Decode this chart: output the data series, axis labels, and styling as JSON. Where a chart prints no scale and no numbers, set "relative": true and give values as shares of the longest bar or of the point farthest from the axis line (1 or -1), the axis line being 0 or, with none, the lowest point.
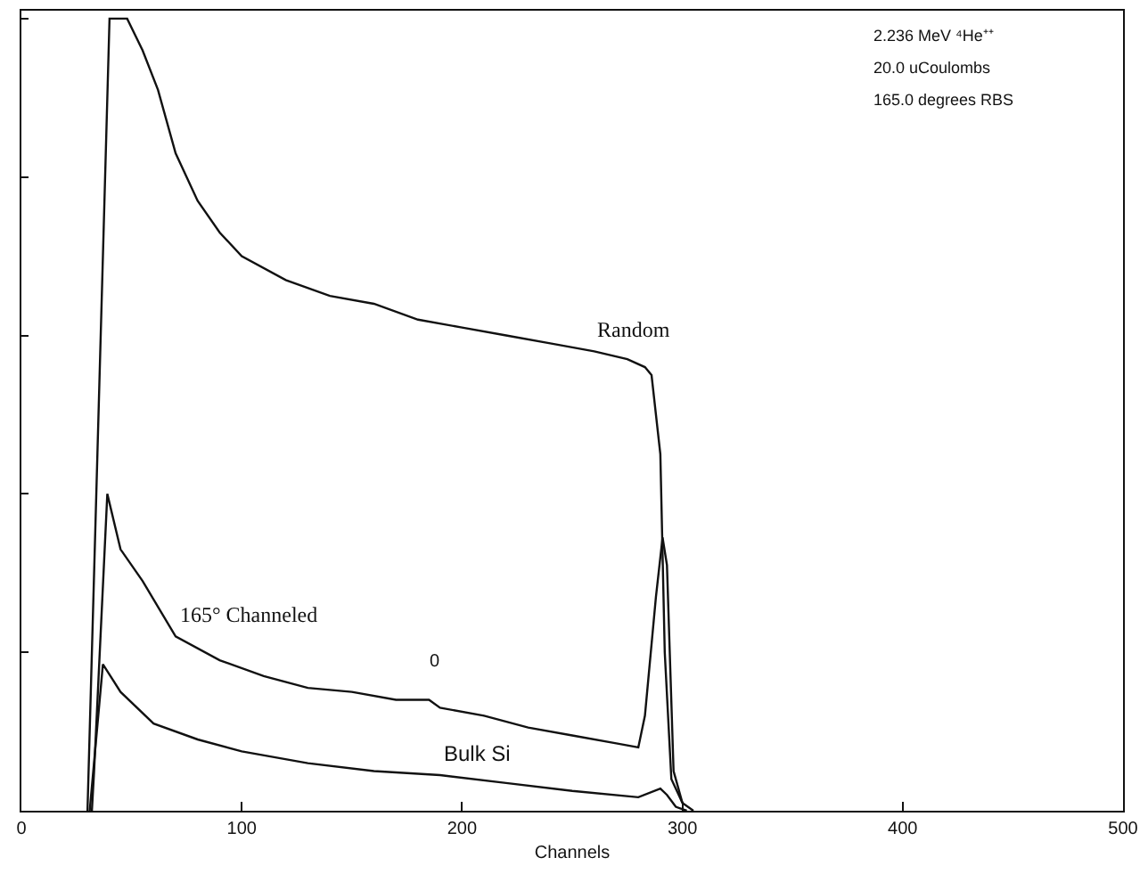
{
  "chart_data": {
    "type": "line",
    "xlabel": "Channels",
    "relative": true,
    "xlim": [
      0,
      500
    ],
    "xticks": [
      0,
      100,
      200,
      300,
      400,
      500
    ],
    "legend": false,
    "marker": "none",
    "line_style": "solid",
    "series": [
      {
        "name": "Random",
        "color": "#111111",
        "x": [
          30,
          40,
          48,
          55,
          62,
          70,
          80,
          90,
          100,
          120,
          140,
          160,
          180,
          200,
          220,
          240,
          260,
          275,
          283,
          286,
          290,
          292,
          295,
          300,
          305
        ],
        "values": [
          0,
          1.0,
          1.0,
          0.96,
          0.91,
          0.83,
          0.77,
          0.73,
          0.7,
          0.67,
          0.65,
          0.64,
          0.62,
          0.61,
          0.6,
          0.59,
          0.58,
          0.57,
          0.56,
          0.55,
          0.45,
          0.2,
          0.04,
          0.01,
          0
        ]
      },
      {
        "name": "165° Channeled",
        "color": "#111111",
        "x": [
          32,
          33,
          39,
          45,
          55,
          70,
          90,
          110,
          130,
          150,
          170,
          185,
          190,
          210,
          230,
          250,
          270,
          280,
          283,
          288,
          291,
          293,
          296,
          300
        ],
        "values": [
          0,
          0.05,
          0.4,
          0.33,
          0.29,
          0.22,
          0.19,
          0.17,
          0.155,
          0.15,
          0.14,
          0.14,
          0.13,
          0.12,
          0.105,
          0.095,
          0.085,
          0.08,
          0.12,
          0.27,
          0.345,
          0.31,
          0.05,
          0.01
        ]
      },
      {
        "name": "Bulk Si",
        "color": "#111111",
        "x": [
          31,
          37,
          45,
          60,
          80,
          100,
          130,
          160,
          190,
          220,
          250,
          280,
          290,
          293,
          297,
          302
        ],
        "values": [
          0,
          0.185,
          0.15,
          0.11,
          0.09,
          0.075,
          0.06,
          0.05,
          0.045,
          0.035,
          0.025,
          0.017,
          0.028,
          0.02,
          0.005,
          0
        ]
      }
    ],
    "annotations": [
      "0",
      "2.236 MeV ⁴He⁺⁺",
      "20.0 uCoulombs",
      "165.0 degrees RBS"
    ]
  }
}
